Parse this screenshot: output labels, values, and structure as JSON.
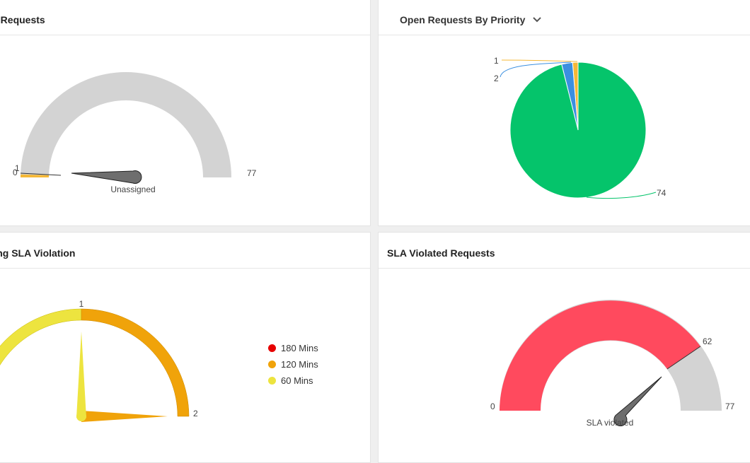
{
  "panels": {
    "open_requests": {
      "title": "Open Requests",
      "gauge": {
        "min": "0",
        "max": "77",
        "value": 1,
        "value_label": "1",
        "label": "Unassigned"
      }
    },
    "by_priority": {
      "title": "Open Requests By Priority",
      "dropdown_icon": "chevron-down-icon",
      "slice_labels": [
        "1",
        "2",
        "74"
      ]
    },
    "approaching_sla": {
      "title": "Approaching SLA Violation",
      "labels": {
        "max": "2",
        "mid": "1"
      },
      "legend": [
        {
          "label": "180 Mins",
          "color": "#e60000"
        },
        {
          "label": "120 Mins",
          "color": "#f0a30a"
        },
        {
          "label": "60 Mins",
          "color": "#ede43f"
        }
      ]
    },
    "sla_violated": {
      "title": "SLA Violated Requests",
      "gauge": {
        "min": "0",
        "max": "77",
        "value": 62,
        "value_label": "62",
        "label": "SLA violated"
      }
    }
  },
  "chart_data": [
    {
      "type": "pie",
      "title": "Open Requests By Priority",
      "categories": [
        "",
        "",
        ""
      ],
      "values": [
        1,
        2,
        74
      ],
      "colors": [
        "#f5b836",
        "#3b8fe0",
        "#05c46b"
      ]
    }
  ],
  "colors": {
    "gauge_track": "#d3d3d3",
    "gauge_fill_orange": "#f5b836",
    "gauge_fill_red": "#ff4a5e",
    "needle": "#707070",
    "sla_yellow": "#ede43f",
    "sla_orange": "#f0a30a"
  }
}
